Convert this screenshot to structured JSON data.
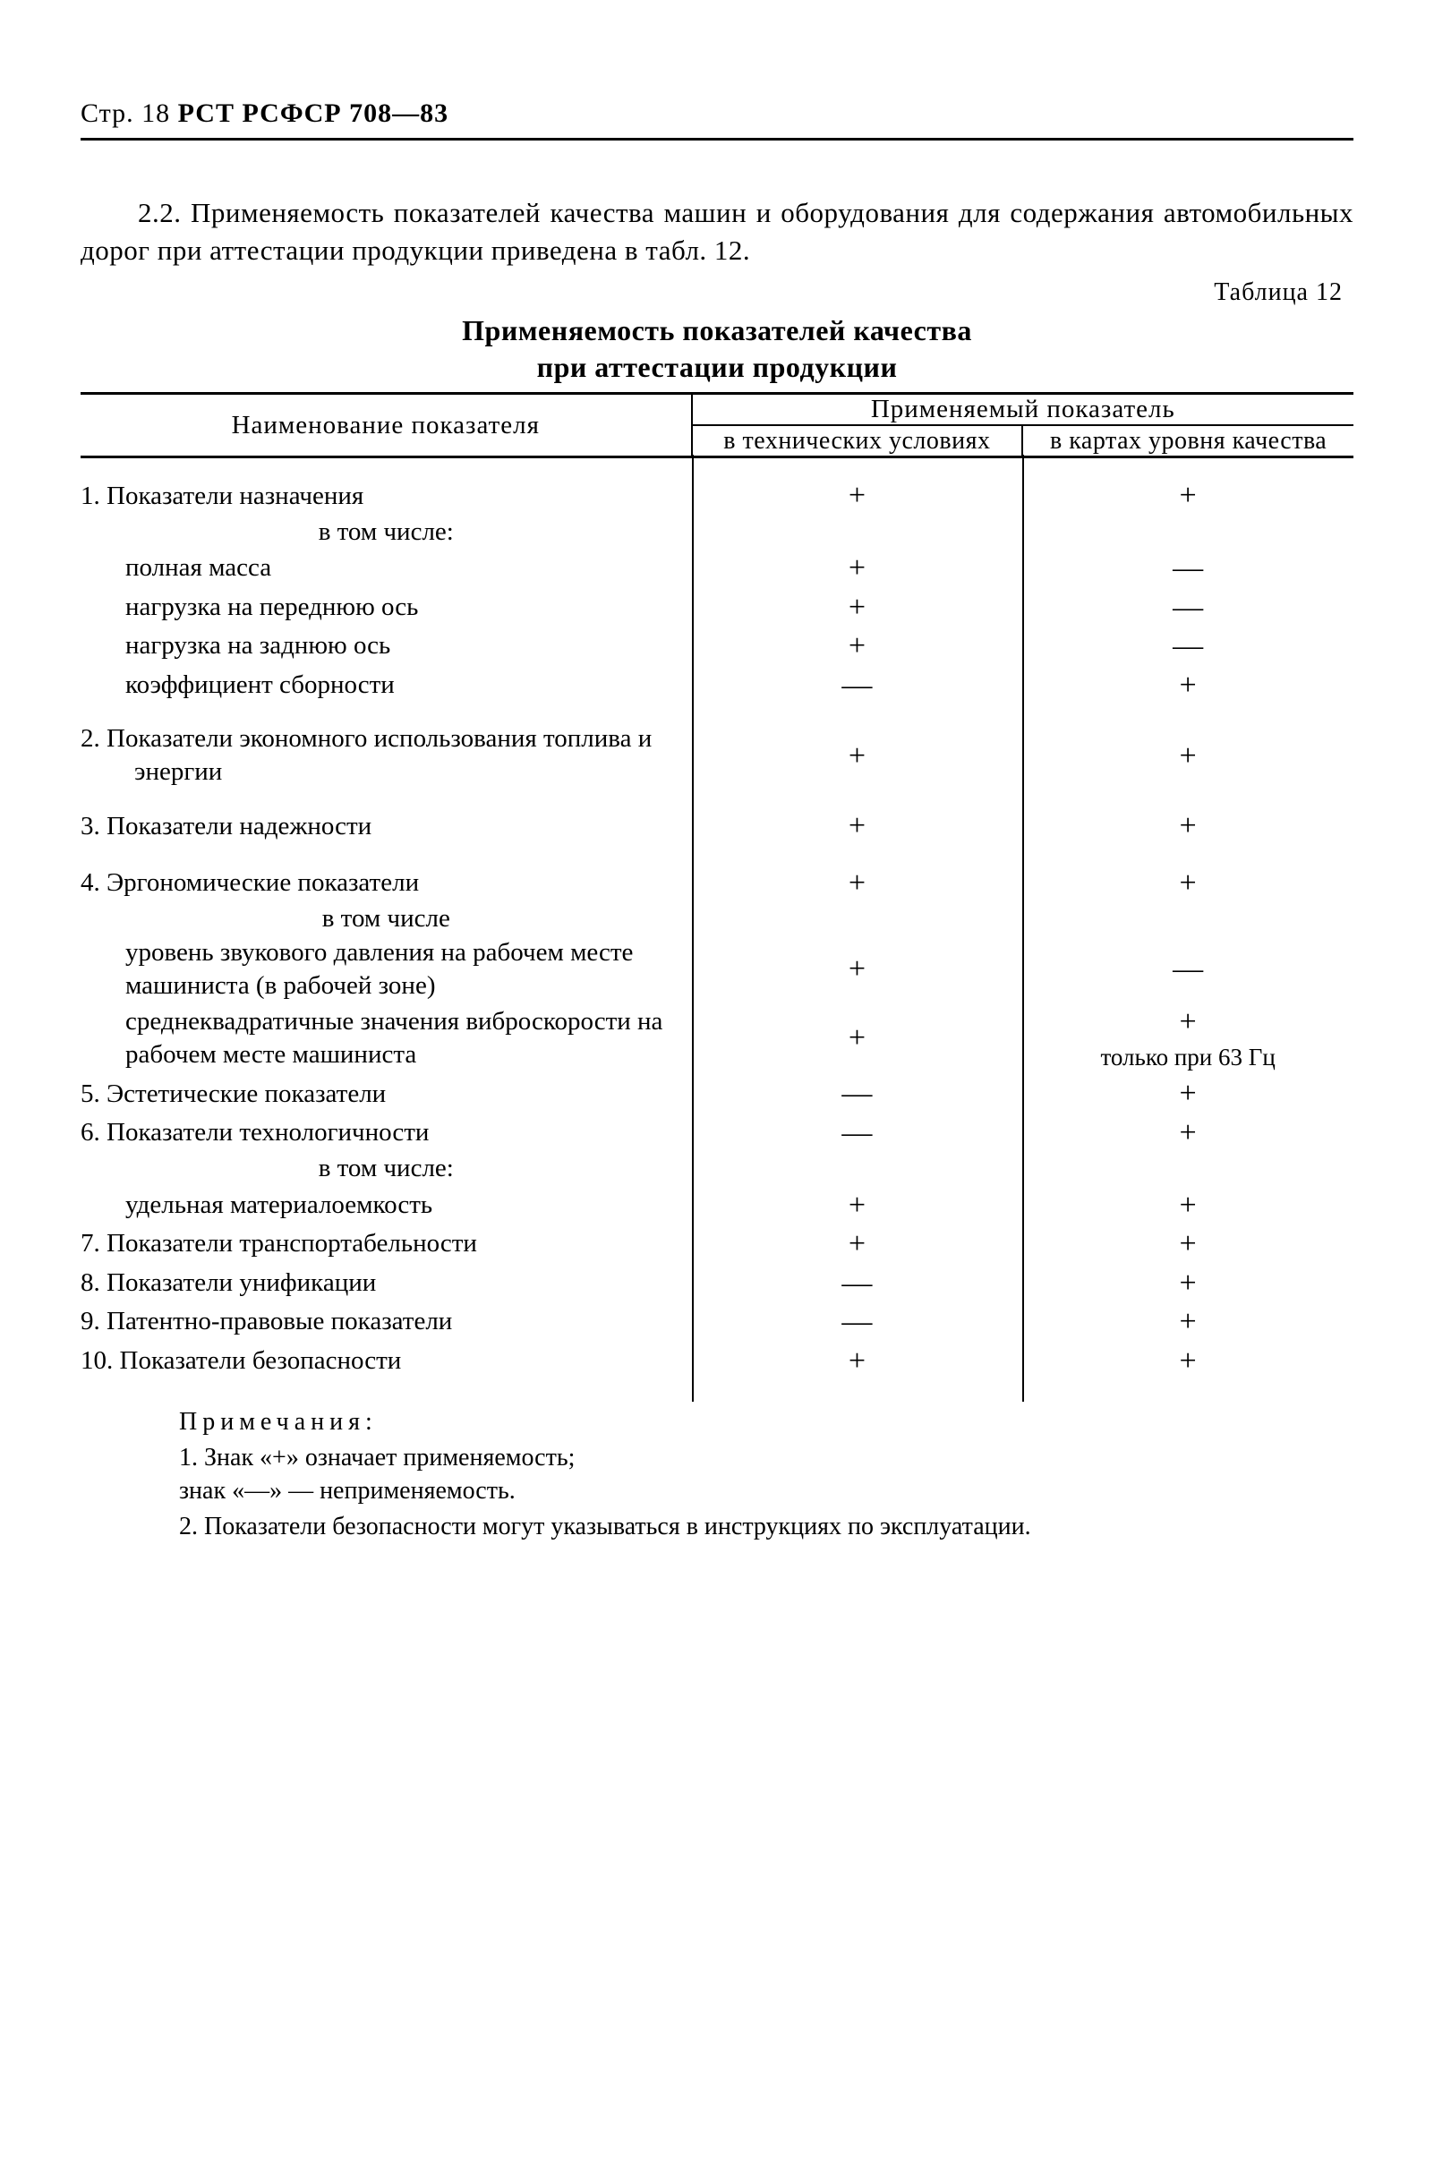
{
  "header": {
    "page_prefix": "Стр. 18 ",
    "standard": "РСТ РСФСР 708—83"
  },
  "paragraph": "2.2. Применяемость показателей качества машин и оборудова­ния для содержания автомобильных дорог при аттестации продук­ции приведена в табл. 12.",
  "table_label": "Таблица 12",
  "table_title_1": "Применяемость показателей качества",
  "table_title_2": "при аттестации продукции",
  "table": {
    "head": {
      "name": "Наименование показателя",
      "group": "Применяемый показатель",
      "sub1": "в технических условиях",
      "sub2": "в картах уровня качества"
    },
    "symbols": {
      "plus": "+",
      "dash": "—"
    },
    "rows": [
      {
        "name": "1. Показатели назначения",
        "c1": "+",
        "c2": "+",
        "indent": 0
      },
      {
        "name": "в том числе:",
        "c1": "",
        "c2": "",
        "indent": 0,
        "center": true
      },
      {
        "name": "полная масса",
        "c1": "+",
        "c2": "—",
        "indent": 1
      },
      {
        "name": "нагрузка на переднюю ось",
        "c1": "+",
        "c2": "—",
        "indent": 1
      },
      {
        "name": "нагрузка на заднюю ось",
        "c1": "+",
        "c2": "—",
        "indent": 1
      },
      {
        "name": "коэффициент сборности",
        "c1": "—",
        "c2": "+",
        "indent": 1
      },
      {
        "gap": true
      },
      {
        "name": "2. Показатели экономного использо­вания топлива и энергии",
        "c1": "+",
        "c2": "+",
        "indent": 0,
        "wrap": true
      },
      {
        "gap": true
      },
      {
        "name": "3. Показатели надежности",
        "c1": "+",
        "c2": "+",
        "indent": 0
      },
      {
        "gap": true
      },
      {
        "name": "4. Эргономические показатели",
        "c1": "+",
        "c2": "+",
        "indent": 0
      },
      {
        "name": "в том числе",
        "c1": "",
        "c2": "",
        "indent": 0,
        "center": true
      },
      {
        "name": "уровень звукового давления на рабочем месте машиниста (в рабочей зоне)",
        "c1": "+",
        "c2": "—",
        "indent": 1,
        "wrap": true
      },
      {
        "name": "среднеквадратичные значения виброскорости на рабочем ме­сте машиниста",
        "c1": "+",
        "c2": "+\nтолько при 63 Гц",
        "indent": 1,
        "wrap": true,
        "c2multi": true
      },
      {
        "name": "5. Эстетические показатели",
        "c1": "—",
        "c2": "+",
        "indent": 0
      },
      {
        "name": "6. Показатели технологичности",
        "c1": "—",
        "c2": "+",
        "indent": 0
      },
      {
        "name": "в том числе:",
        "c1": "",
        "c2": "",
        "indent": 0,
        "center": true
      },
      {
        "name": "удельная материалоемкость",
        "c1": "+",
        "c2": "+",
        "indent": 1
      },
      {
        "name": "7. Показатели транспортабельности",
        "c1": "+",
        "c2": "+",
        "indent": 0
      },
      {
        "name": "8. Показатели унификации",
        "c1": "—",
        "c2": "+",
        "indent": 0
      },
      {
        "name": "9. Патентно-правовые показатели",
        "c1": "—",
        "c2": "+",
        "indent": 0
      },
      {
        "name": "10. Показатели безопасности",
        "c1": "+",
        "c2": "+",
        "indent": 0
      }
    ]
  },
  "notes": {
    "title": "Примечания:",
    "n1a": "1. Знак «+» означает применяемость;",
    "n1b": "знак «—» — неприменяемость.",
    "n2": "2. Показатели безопасности могут указываться  в  инструкциях по эксплуатации."
  }
}
